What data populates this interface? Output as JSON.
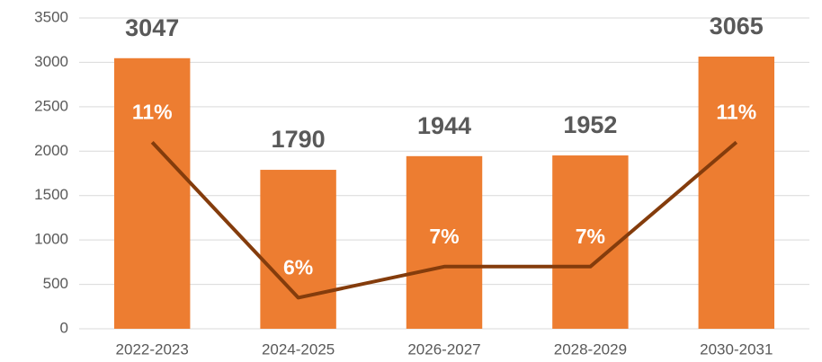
{
  "chart_data": {
    "type": "bar+line",
    "categories": [
      "2022-2023",
      "2024-2025",
      "2026-2027",
      "2028-2029",
      "2030-2031"
    ],
    "series": [
      {
        "type": "bar",
        "color": "#ed7d31",
        "values": [
          3047,
          1790,
          1944,
          1952,
          3065
        ]
      },
      {
        "type": "line",
        "axis": "y2",
        "color": "#843c0c",
        "values": [
          11,
          6,
          7,
          7,
          11
        ],
        "value_labels": [
          "11%",
          "6%",
          "7%",
          "7%",
          "11%"
        ]
      }
    ],
    "ylim": [
      0,
      3500
    ],
    "yticks": [
      0,
      500,
      1000,
      1500,
      2000,
      2500,
      3000,
      3500
    ],
    "y2lim": [
      5,
      15
    ],
    "grid": true
  }
}
